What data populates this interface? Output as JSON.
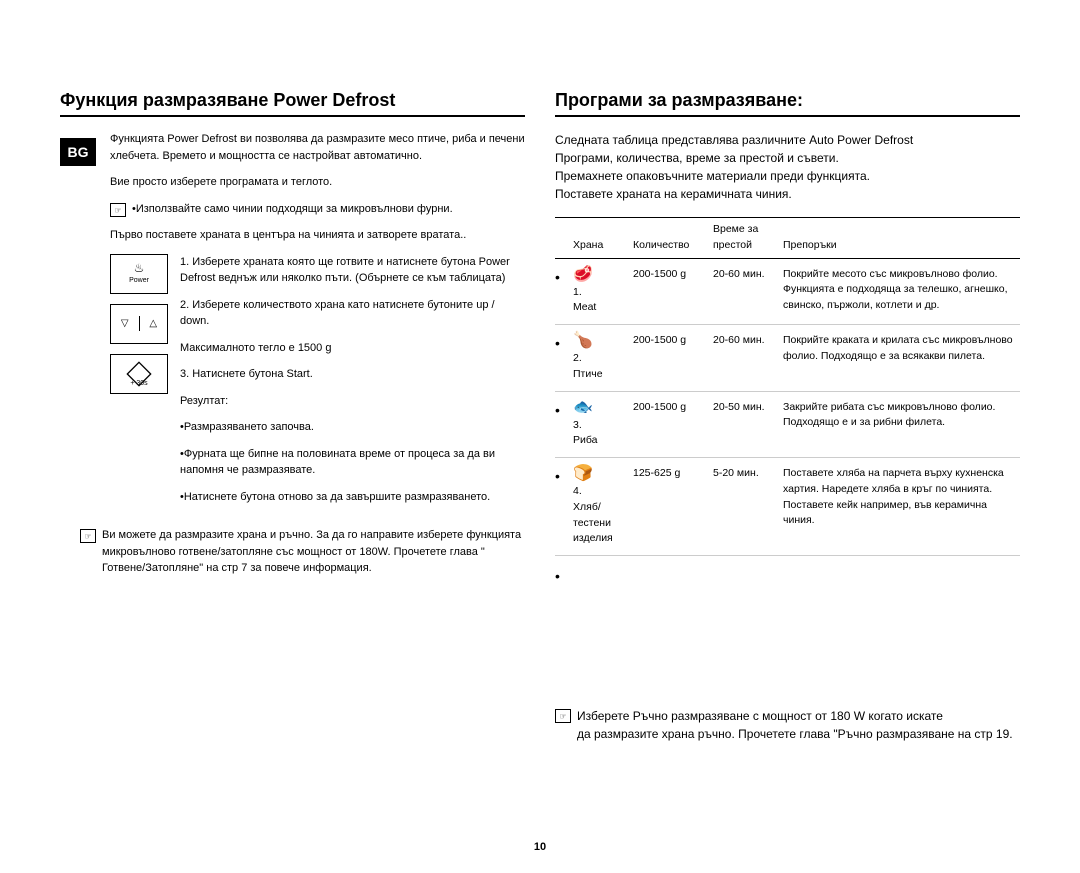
{
  "lang_tag": "BG",
  "page_number": "10",
  "left": {
    "title": "Функция размразяване Power Defrost",
    "intro": "Функцията Power Defrost ви позволява да размразите месо птиче, риба и печени хлебчета. Времето и мощността се настройват автоматично.",
    "select_line": "Вие просто изберете програмата и теглото.",
    "note1": "•Използвайте само чинии подходящи за микровълнови фурни.",
    "center_line": "Първо поставете храната в центъра на чинията и затворете вратата..",
    "buttons": {
      "power": "Power",
      "plus30": "+ 30s"
    },
    "step1": "1. Изберете храната която ще готвите и натиснете бутона Power Defrost веднъж или няколко пъти. (Обърнете се към таблицата)",
    "step2a": "2. Изберете количеството храна като натиснете бутоните up / down.",
    "step2b": "Максималното тегло е 1500 g",
    "step3a": "3. Натиснете бутона Start.",
    "step3b": "Резултат:",
    "step3c": "•Размразяването започва.",
    "step3d": "•Фурната ще бипне на половината време от процеса за да ви напомня че размразявате.",
    "step3e": "•Натиснете бутона отново за да завършите размразяването.",
    "note2": "Ви можете да размразите храна и ръчно. За да го направите изберете функцията микровълново готвене/затопляне със мощност от 180W. Прочетете глава \" Готвене/Затопляне\" на стр 7 за повече информация."
  },
  "right": {
    "title": "Програми за размразяване:",
    "intro1": "Следната таблица представлява различните Auto Power Defrost",
    "intro2": "Програми, количества, време за престой и съвети.",
    "intro3": "Премахнете опаковъчните материали преди функцията.",
    "intro4": "Поставете храната на керамичната чиния.",
    "headers": {
      "food": "Храна",
      "qty": "Количество",
      "time": "Време за престой",
      "rec": "Препоръки"
    },
    "rows": [
      {
        "icon": "🥩",
        "num": "1.",
        "name": "Meat",
        "qty": "200-1500 g",
        "time": "20-60 мин.",
        "rec": "Покрийте месото със микровълново фолио. Функцията е подходяща за телешко, агнешко, свинско, пържоли, котлети и др."
      },
      {
        "icon": "🍗",
        "num": "2.",
        "name": "Птиче",
        "qty": "200-1500 g",
        "time": "20-60 мин.",
        "rec": "Покрийте краката и крилата със микровълново фолио. Подходящо е за всякакви пилета."
      },
      {
        "icon": "🐟",
        "num": "3.",
        "name": "Риба",
        "qty": "200-1500 g",
        "time": "20-50 мин.",
        "rec": "Закрийте рибата със микровълново фолио. Подходящо е и за рибни филета."
      },
      {
        "icon": "🍞",
        "num": "4.",
        "name": "Хляб/ тестени изделия",
        "qty": "125-625 g",
        "time": "5-20 мин.",
        "rec": "Поставете хляба на парчета върху кухненска хартия. Наредете хляба в кръг по чинията. Поставете кейк например, във керамична чиния."
      }
    ],
    "bottom_note": "Изберете Ръчно размразяване с мощност от 180 W когато искате\nда размразите храна ръчно. Прочетете глава \"Ръчно размразяване на стр 19."
  }
}
